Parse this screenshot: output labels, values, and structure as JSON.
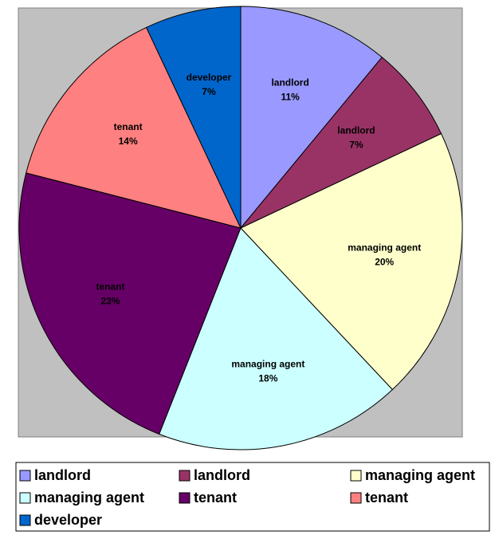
{
  "chart_data": {
    "type": "pie",
    "categories": [
      "landlord",
      "landlord",
      "managing agent",
      "managing agent",
      "tenant",
      "tenant",
      "developer"
    ],
    "values": [
      11,
      7,
      20,
      18,
      23,
      14,
      7
    ],
    "value_labels": [
      "11%",
      "7%",
      "20%",
      "18%",
      "23%",
      "14%",
      "7%"
    ],
    "colors": [
      "#9999ff",
      "#993366",
      "#ffffcc",
      "#ccffff",
      "#660066",
      "#ff8080",
      "#0066cc"
    ],
    "legend": "bottom"
  }
}
